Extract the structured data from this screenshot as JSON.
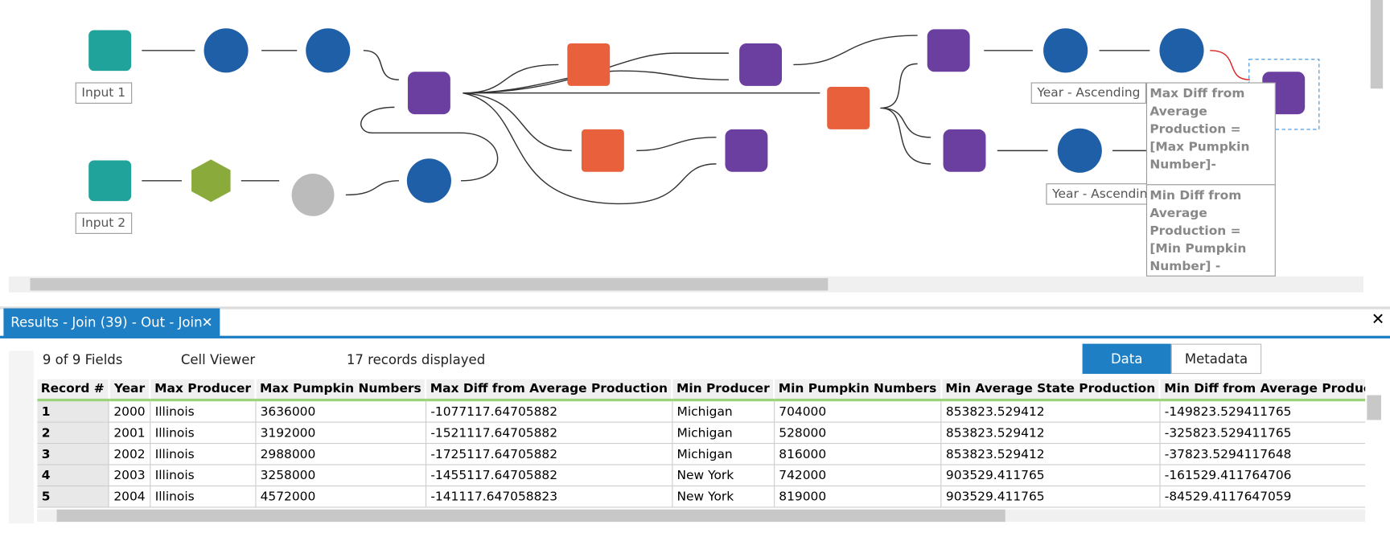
{
  "canvas": {
    "tool_labels": [
      "Input 1",
      "Input 2",
      "Year - Ascending",
      "Year - Ascendin"
    ],
    "annotations": [
      "Max Diff from Average Production = [Max Pumpkin Number]-",
      "Min Diff from Average Production = [Min Pumpkin Number] -"
    ]
  },
  "results": {
    "title": "Results - Join (39) - Out - Join",
    "toolbar": {
      "fields": "9 of 9 Fields",
      "viewer": "Cell Viewer",
      "records": "17 records displayed",
      "data_button": "Data",
      "metadata_button": "Metadata"
    },
    "table": {
      "columns": [
        "Record #",
        "Year",
        "Max Producer",
        "Max Pumpkin Numbers",
        "Max Diff from Average Production",
        "Min Producer",
        "Min Pumpkin Numbers",
        "Min Average State Production",
        "Min Diff from Average Production"
      ],
      "rows": [
        [
          "1",
          "2000",
          "Illinois",
          "3636000",
          "-1077117.64705882",
          "Michigan",
          "704000",
          "853823.529412",
          "-149823.529411765"
        ],
        [
          "2",
          "2001",
          "Illinois",
          "3192000",
          "-1521117.64705882",
          "Michigan",
          "528000",
          "853823.529412",
          "-325823.529411765"
        ],
        [
          "3",
          "2002",
          "Illinois",
          "2988000",
          "-1725117.64705882",
          "Michigan",
          "816000",
          "853823.529412",
          "-37823.5294117648"
        ],
        [
          "4",
          "2003",
          "Illinois",
          "3258000",
          "-1455117.64705882",
          "New York",
          "742000",
          "903529.411765",
          "-161529.411764706"
        ],
        [
          "5",
          "2004",
          "Illinois",
          "4572000",
          "-141117.647058823",
          "New York",
          "819000",
          "903529.411765",
          "-84529.4117647059"
        ]
      ]
    }
  }
}
